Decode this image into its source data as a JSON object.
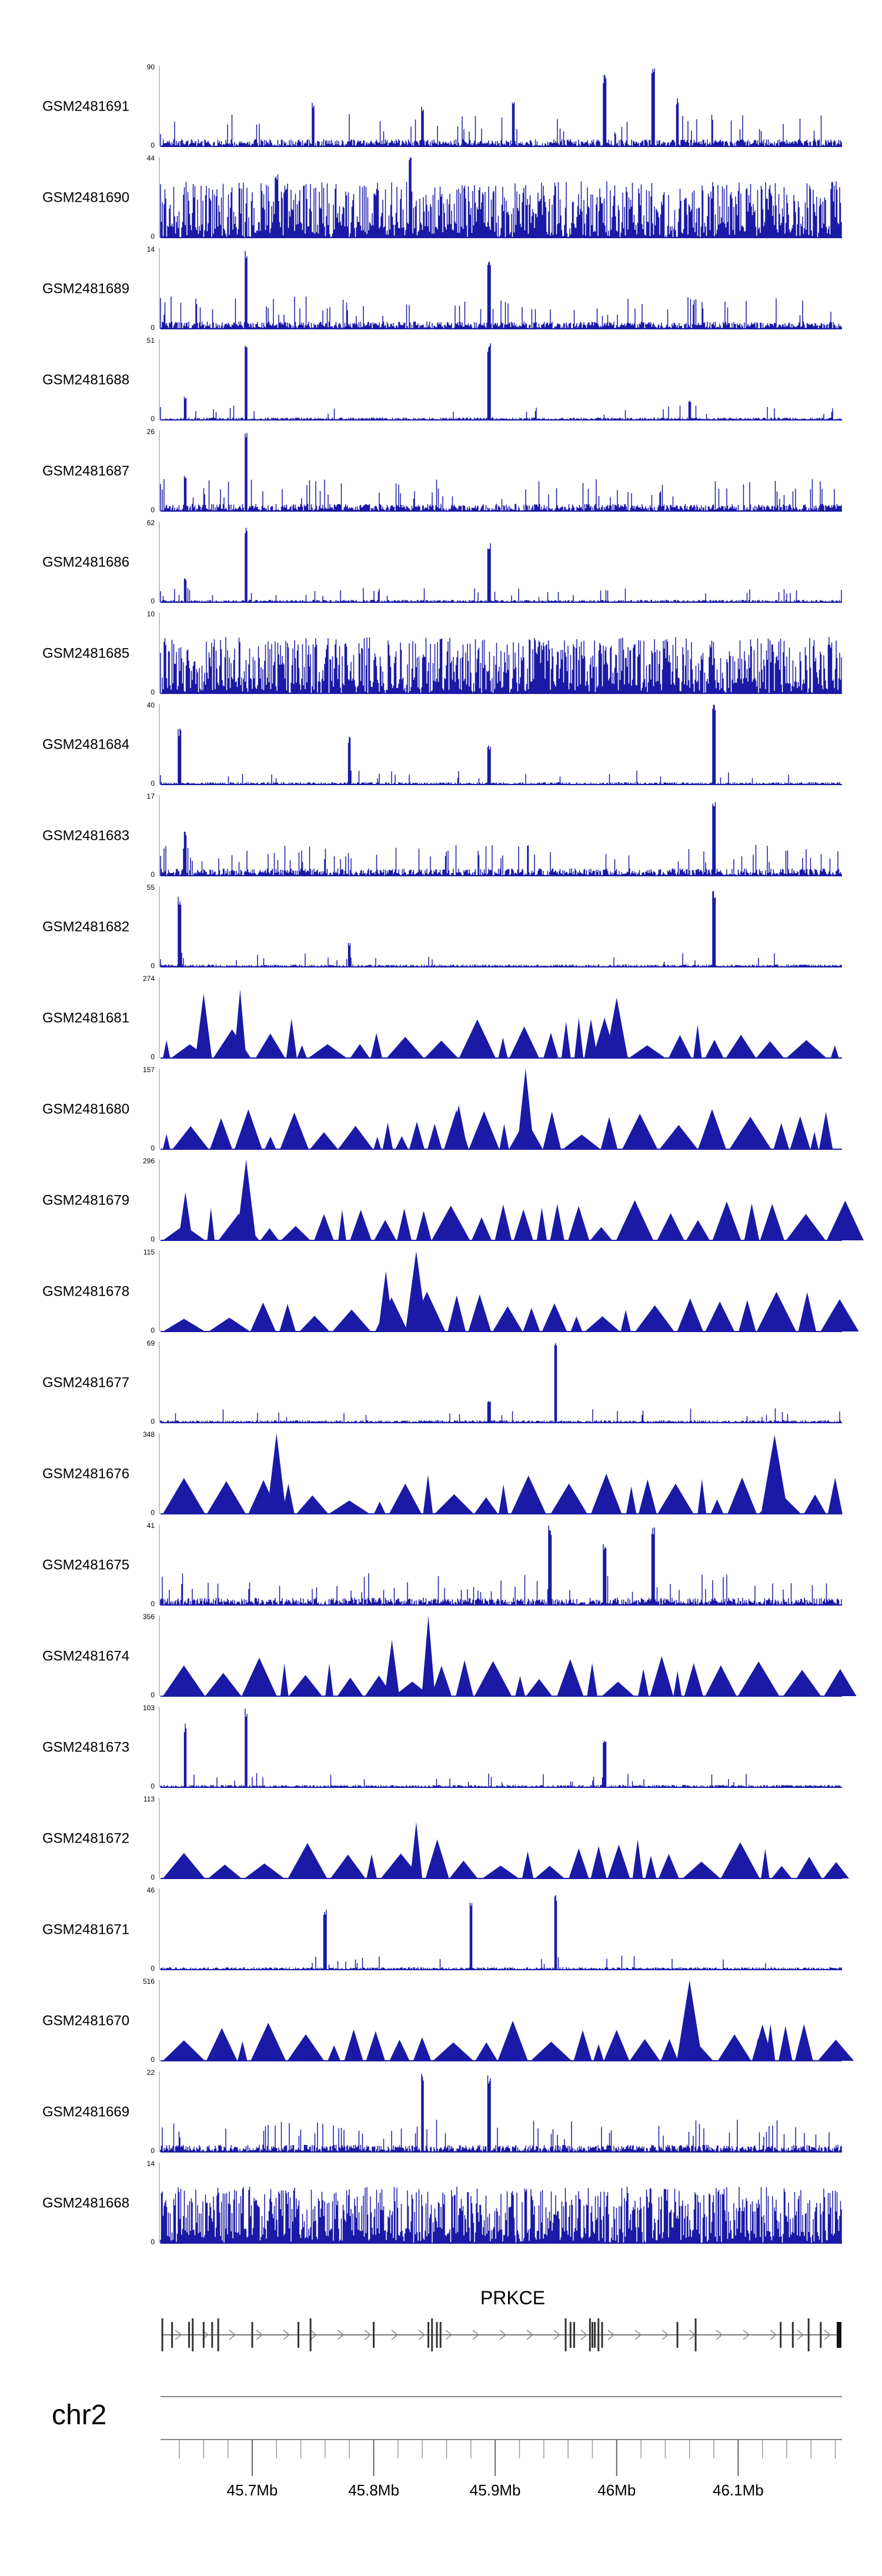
{
  "chart_data": {
    "type": "area",
    "title": "",
    "xlabel": "",
    "ylabel": "",
    "chromosome": "chr2",
    "gene": {
      "name": "PRKCE",
      "start_mb": 45.625,
      "end_mb": 46.185,
      "strand": "+"
    },
    "xlim_mb": [
      45.6245,
      46.1855
    ],
    "x_ticks_mb": [
      45.7,
      45.8,
      45.9,
      46.0,
      46.1
    ],
    "x_tick_labels": [
      "45.7Mb",
      "45.8Mb",
      "45.9Mb",
      "46Mb",
      "46.1Mb"
    ],
    "minor_tick_step_mb": 0.02,
    "fill_color": "#1a1aa6",
    "tracks": [
      {
        "name": "GSM2481691",
        "ymax": 90,
        "ymin": 0,
        "style": "dense",
        "peaks": [
          [
            45.75,
            0.55
          ],
          [
            45.84,
            0.5
          ],
          [
            45.915,
            0.55
          ],
          [
            45.99,
            0.9
          ],
          [
            46.03,
            1.0
          ],
          [
            46.05,
            0.6
          ]
        ]
      },
      {
        "name": "GSM2481690",
        "ymax": 44,
        "ymin": 0,
        "style": "uniform",
        "peaks": [
          [
            45.83,
            1.0
          ],
          [
            45.72,
            0.8
          ]
        ]
      },
      {
        "name": "GSM2481689",
        "ymax": 14,
        "ymin": 0,
        "style": "dense",
        "peaks": [
          [
            45.695,
            1.0
          ],
          [
            45.895,
            0.85
          ]
        ]
      },
      {
        "name": "GSM2481688",
        "ymax": 51,
        "ymin": 0,
        "style": "sparse",
        "peaks": [
          [
            45.695,
            1.0
          ],
          [
            45.895,
            0.95
          ],
          [
            45.645,
            0.3
          ],
          [
            46.06,
            0.25
          ]
        ]
      },
      {
        "name": "GSM2481687",
        "ymax": 26,
        "ymin": 0,
        "style": "dense",
        "peaks": [
          [
            45.695,
            1.0
          ],
          [
            45.645,
            0.45
          ]
        ]
      },
      {
        "name": "GSM2481686",
        "ymax": 62,
        "ymin": 0,
        "style": "sparse",
        "peaks": [
          [
            45.695,
            1.0
          ],
          [
            45.895,
            0.75
          ],
          [
            45.645,
            0.3
          ]
        ]
      },
      {
        "name": "GSM2481685",
        "ymax": 10,
        "ymin": 0,
        "style": "uniform",
        "peaks": []
      },
      {
        "name": "GSM2481684",
        "ymax": 40,
        "ymin": 0,
        "style": "sparse",
        "peaks": [
          [
            45.64,
            0.7
          ],
          [
            45.78,
            0.6
          ],
          [
            45.895,
            0.5
          ],
          [
            46.08,
            1.0
          ]
        ]
      },
      {
        "name": "GSM2481683",
        "ymax": 17,
        "ymin": 0,
        "style": "dense",
        "peaks": [
          [
            46.08,
            1.0
          ],
          [
            45.645,
            0.55
          ]
        ]
      },
      {
        "name": "GSM2481682",
        "ymax": 55,
        "ymin": 0,
        "style": "sparse",
        "peaks": [
          [
            45.64,
            0.9
          ],
          [
            46.08,
            0.95
          ],
          [
            45.78,
            0.3
          ]
        ]
      },
      {
        "name": "GSM2481681",
        "ymax": 274,
        "ymin": 0,
        "style": "triangles",
        "peaks": [
          [
            45.66,
            0.8
          ],
          [
            45.69,
            0.85
          ],
          [
            46.0,
            0.75
          ],
          [
            45.99,
            0.5
          ]
        ]
      },
      {
        "name": "GSM2481680",
        "ymax": 157,
        "ymin": 0,
        "style": "triangles",
        "peaks": [
          [
            45.925,
            1.0
          ],
          [
            45.87,
            0.55
          ]
        ]
      },
      {
        "name": "GSM2481679",
        "ymax": 296,
        "ymin": 0,
        "style": "triangles",
        "peaks": [
          [
            45.695,
            1.0
          ],
          [
            45.645,
            0.6
          ]
        ]
      },
      {
        "name": "GSM2481678",
        "ymax": 115,
        "ymin": 0,
        "style": "triangles",
        "peaks": [
          [
            45.835,
            1.0
          ],
          [
            45.81,
            0.75
          ]
        ]
      },
      {
        "name": "GSM2481677",
        "ymax": 69,
        "ymin": 0,
        "style": "sparse",
        "peaks": [
          [
            45.95,
            1.0
          ],
          [
            45.895,
            0.3
          ]
        ]
      },
      {
        "name": "GSM2481676",
        "ymax": 348,
        "ymin": 0,
        "style": "triangles",
        "peaks": [
          [
            45.72,
            1.0
          ],
          [
            46.13,
            0.98
          ]
        ]
      },
      {
        "name": "GSM2481675",
        "ymax": 41,
        "ymin": 0,
        "style": "dense",
        "peaks": [
          [
            45.945,
            1.0
          ],
          [
            46.03,
            1.0
          ],
          [
            45.99,
            0.8
          ]
        ]
      },
      {
        "name": "GSM2481674",
        "ymax": 356,
        "ymin": 0,
        "style": "triangles",
        "peaks": [
          [
            45.845,
            1.0
          ],
          [
            45.815,
            0.7
          ]
        ]
      },
      {
        "name": "GSM2481673",
        "ymax": 103,
        "ymin": 0,
        "style": "sparse",
        "peaks": [
          [
            45.695,
            1.0
          ],
          [
            45.645,
            0.8
          ],
          [
            45.99,
            0.65
          ]
        ]
      },
      {
        "name": "GSM2481672",
        "ymax": 113,
        "ymin": 0,
        "style": "triangles",
        "peaks": [
          [
            45.835,
            0.7
          ]
        ]
      },
      {
        "name": "GSM2481671",
        "ymax": 46,
        "ymin": 0,
        "style": "sparse",
        "peaks": [
          [
            45.95,
            1.0
          ],
          [
            45.88,
            0.85
          ],
          [
            45.76,
            0.75
          ]
        ]
      },
      {
        "name": "GSM2481670",
        "ymax": 516,
        "ymin": 0,
        "style": "triangles",
        "peaks": [
          [
            46.06,
            1.0
          ],
          [
            46.12,
            0.45
          ]
        ]
      },
      {
        "name": "GSM2481669",
        "ymax": 22,
        "ymin": 0,
        "style": "dense",
        "peaks": [
          [
            45.84,
            1.0
          ],
          [
            45.895,
            0.95
          ]
        ]
      },
      {
        "name": "GSM2481668",
        "ymax": 14,
        "ymin": 0,
        "style": "uniform",
        "peaks": []
      }
    ]
  }
}
